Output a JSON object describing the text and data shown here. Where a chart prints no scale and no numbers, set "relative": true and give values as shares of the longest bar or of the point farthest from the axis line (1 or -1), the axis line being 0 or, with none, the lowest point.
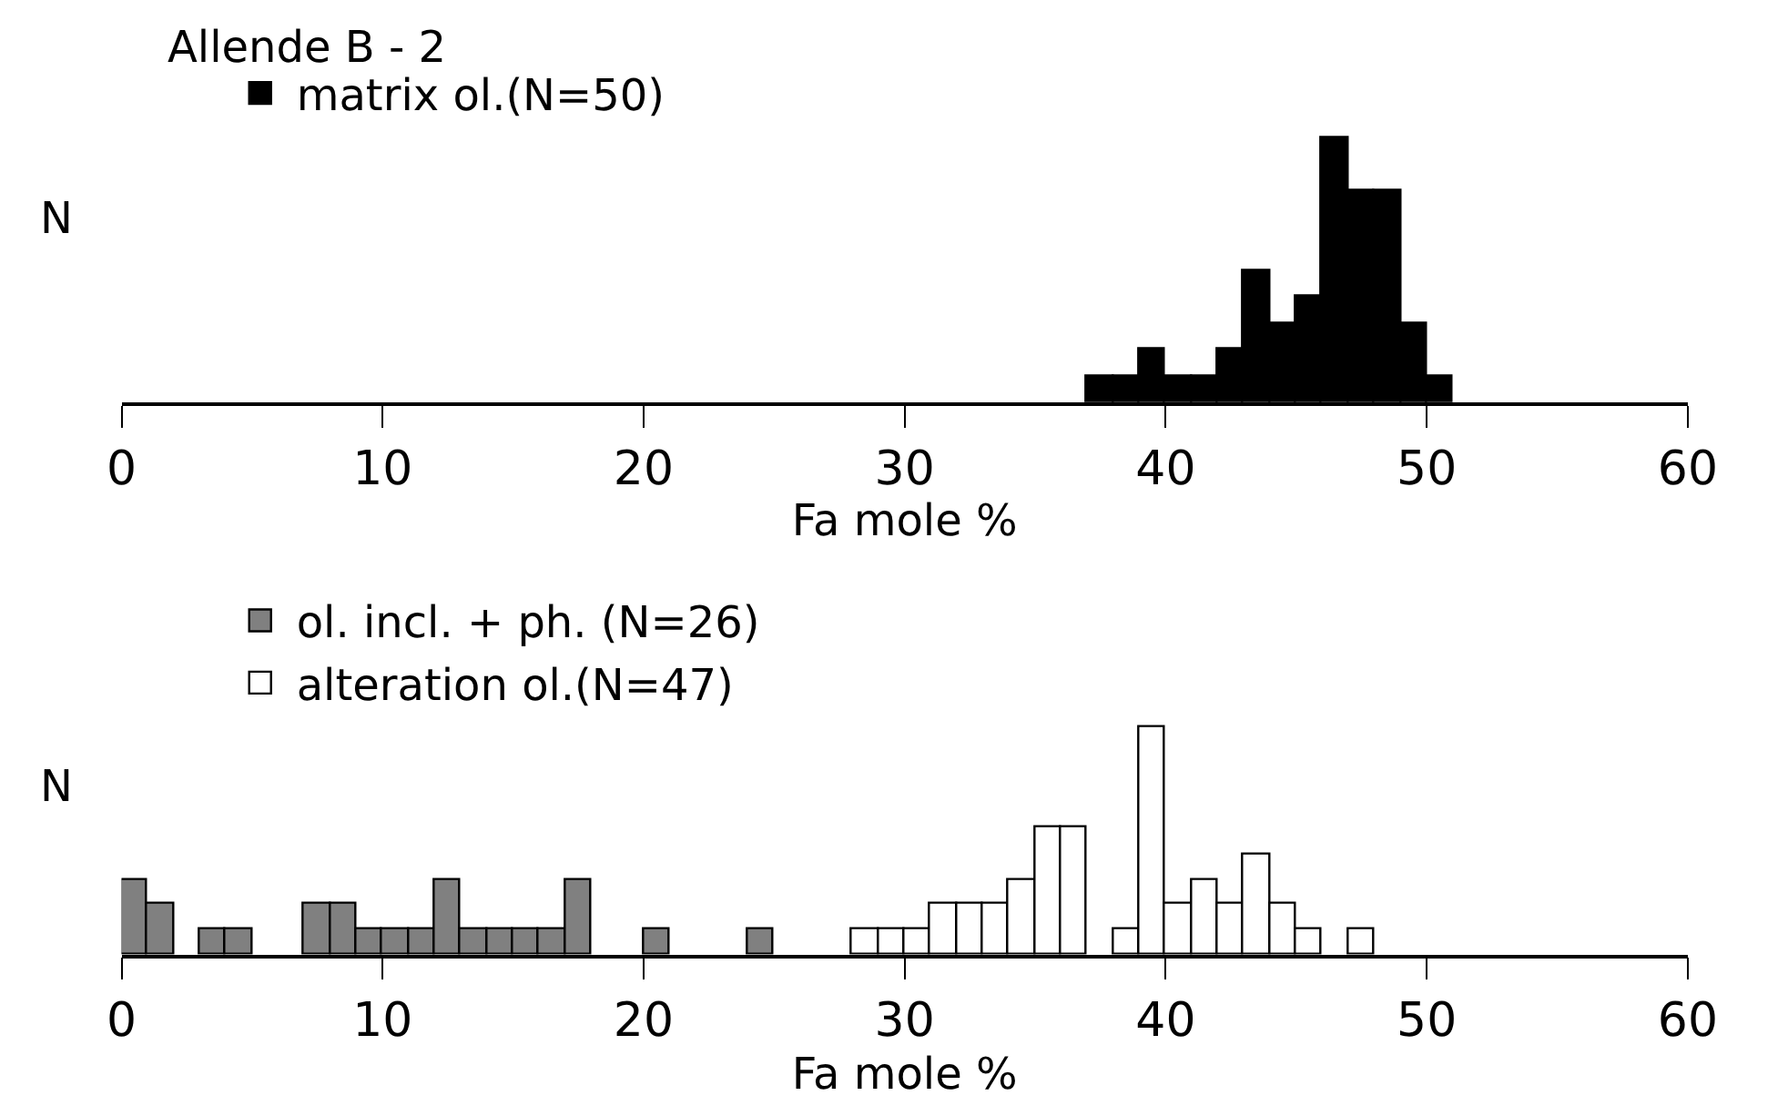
{
  "chart_data": [
    {
      "type": "bar",
      "title": "Allende B - 2",
      "xlabel": "Fa mole %",
      "ylabel": "N",
      "relative": true,
      "xlim": [
        0,
        60
      ],
      "xticks": [
        0,
        10,
        20,
        30,
        40,
        50,
        60
      ],
      "tick_labels": "x",
      "grid": false,
      "legend": "top left",
      "series": [
        {
          "name": "matrix ol.(N=50)",
          "color": "#000000",
          "x": [
            37.5,
            38.5,
            39.5,
            40.5,
            41.5,
            42.5,
            43.5,
            44.5,
            45.5,
            46.5,
            47.5,
            48.5,
            49.5,
            50.5
          ],
          "values": [
            0.1,
            0.1,
            0.2,
            0.1,
            0.1,
            0.2,
            0.5,
            0.3,
            0.4,
            1.0,
            0.8,
            0.8,
            0.3,
            0.1
          ]
        }
      ]
    },
    {
      "type": "bar",
      "xlabel": "Fa mole %",
      "ylabel": "N",
      "relative": true,
      "xlim": [
        0,
        60
      ],
      "xticks": [
        0,
        10,
        20,
        30,
        40,
        50,
        60
      ],
      "tick_labels": "x",
      "grid": false,
      "legend": "top left",
      "series": [
        {
          "name": "ol. incl. + ph. (N=26)",
          "color": "#808080",
          "x": [
            0.5,
            1.5,
            3.5,
            4.5,
            7.5,
            8.5,
            9.5,
            10.5,
            11.5,
            12.5,
            13.5,
            14.5,
            15.5,
            16.5,
            17.5,
            20.5,
            24.5
          ],
          "values": [
            0.33,
            0.22,
            0.11,
            0.11,
            0.22,
            0.22,
            0.11,
            0.11,
            0.11,
            0.33,
            0.11,
            0.11,
            0.11,
            0.11,
            0.33,
            0.11,
            0.11
          ]
        },
        {
          "name": "alteration ol.(N=47)",
          "color": "#ffffff",
          "x": [
            28.5,
            29.5,
            30.5,
            31.5,
            32.5,
            33.5,
            34.5,
            35.5,
            36.5,
            38.5,
            39.5,
            40.5,
            41.5,
            42.5,
            43.5,
            44.5,
            45.5,
            47.5
          ],
          "values": [
            0.11,
            0.11,
            0.11,
            0.22,
            0.22,
            0.22,
            0.33,
            0.56,
            0.56,
            0.11,
            1.0,
            0.22,
            0.33,
            0.22,
            0.44,
            0.22,
            0.11,
            0.11
          ]
        }
      ]
    }
  ]
}
